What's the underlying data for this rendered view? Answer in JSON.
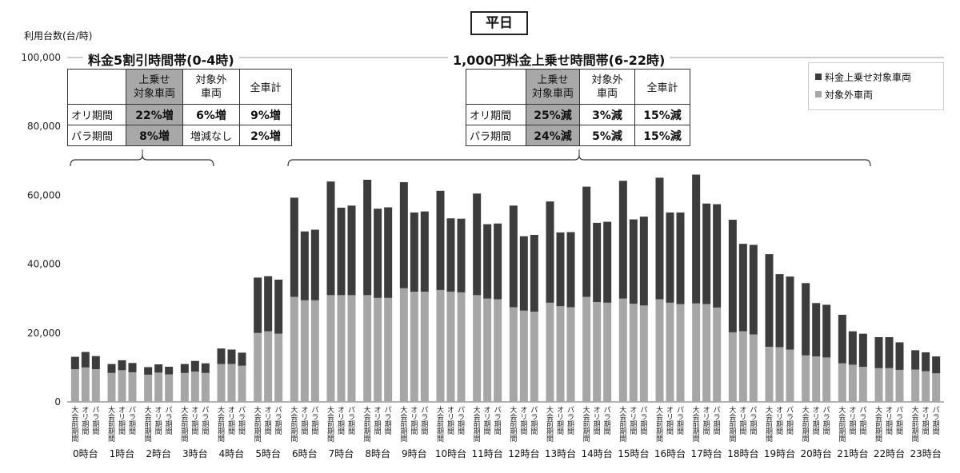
{
  "header": {
    "weekday": "平日"
  },
  "chart_data": {
    "type": "bar",
    "stacked": true,
    "ylabel": "利用台数(台/時)",
    "ylim": [
      0,
      100000
    ],
    "yticks": [
      0,
      20000,
      40000,
      60000,
      80000,
      100000
    ],
    "ytick_labels": [
      "0",
      "20,000",
      "40,000",
      "60,000",
      "80,000",
      "100,000"
    ],
    "grid": false,
    "legend_position": "top-right",
    "bar_labels": [
      "大会前期間",
      "オリ期間",
      "パラ期間"
    ],
    "categories": [
      "0時台",
      "1時台",
      "2時台",
      "3時台",
      "4時台",
      "5時台",
      "6時台",
      "7時台",
      "8時台",
      "9時台",
      "10時台",
      "11時台",
      "12時台",
      "13時台",
      "14時台",
      "15時台",
      "16時台",
      "17時台",
      "18時台",
      "19時台",
      "20時台",
      "21時台",
      "22時台",
      "23時台"
    ],
    "series": [
      {
        "name": "対象外車両",
        "color": "#a6a6a6",
        "values": [
          [
            9500,
            10000,
            9500
          ],
          [
            8400,
            9200,
            8600
          ],
          [
            7900,
            8500,
            8000
          ],
          [
            8400,
            8800,
            8400
          ],
          [
            11000,
            11000,
            10500
          ],
          [
            20000,
            20500,
            19800
          ],
          [
            30500,
            29500,
            29500
          ],
          [
            31000,
            31000,
            31000
          ],
          [
            31000,
            30200,
            30200
          ],
          [
            33000,
            32000,
            32000
          ],
          [
            32500,
            32000,
            31800
          ],
          [
            31000,
            30000,
            29800
          ],
          [
            27500,
            26500,
            26200
          ],
          [
            28800,
            27800,
            27500
          ],
          [
            30500,
            29000,
            28800
          ],
          [
            30000,
            28500,
            28000
          ],
          [
            29800,
            28800,
            28400
          ],
          [
            28600,
            28400,
            27400
          ],
          [
            20200,
            20500,
            19600
          ],
          [
            16000,
            15900,
            15200
          ],
          [
            13500,
            13200,
            12900
          ],
          [
            11200,
            10800,
            10200
          ],
          [
            9800,
            9800,
            9300
          ],
          [
            9400,
            8900,
            8300
          ]
        ]
      },
      {
        "name": "料金上乗せ対象車両",
        "color": "#3c3c3c",
        "values": [
          [
            3600,
            4500,
            3800
          ],
          [
            2600,
            2900,
            2700
          ],
          [
            2200,
            2400,
            2200
          ],
          [
            2600,
            3100,
            2800
          ],
          [
            4500,
            4200,
            3800
          ],
          [
            16100,
            16000,
            15700
          ],
          [
            28800,
            20000,
            20500
          ],
          [
            33000,
            25400,
            26000
          ],
          [
            33500,
            25900,
            26300
          ],
          [
            30800,
            23000,
            23300
          ],
          [
            28800,
            21300,
            21400
          ],
          [
            29500,
            21600,
            22000
          ],
          [
            29500,
            21600,
            22300
          ],
          [
            29400,
            21400,
            21800
          ],
          [
            32000,
            23000,
            23500
          ],
          [
            34200,
            24500,
            25800
          ],
          [
            35300,
            26200,
            26600
          ],
          [
            37400,
            29200,
            30000
          ],
          [
            32700,
            25400,
            26000
          ],
          [
            26900,
            21200,
            21200
          ],
          [
            21000,
            15500,
            15300
          ],
          [
            14100,
            9700,
            9600
          ],
          [
            9000,
            9000,
            8000
          ],
          [
            5600,
            5500,
            4900
          ]
        ]
      }
    ]
  },
  "bands": [
    {
      "title": "料金5割引時間帯(0-4時)",
      "table": {
        "header": [
          "",
          "上乗せ\n対象車両",
          "対象外\n車両",
          "全車計"
        ],
        "rows": [
          [
            "オリ期間",
            "22%増",
            "6%増",
            "9%増"
          ],
          [
            "パラ期間",
            "8%増",
            "増減なし",
            "2%増"
          ]
        ]
      }
    },
    {
      "title": "1,000円料金上乗せ時間帯(6-22時)",
      "table": {
        "header": [
          "",
          "上乗せ\n対象車両",
          "対象外\n車両",
          "全車計"
        ],
        "rows": [
          [
            "オリ期間",
            "25%減",
            "3%減",
            "15%減"
          ],
          [
            "パラ期間",
            "24%減",
            "5%減",
            "15%減"
          ]
        ]
      }
    }
  ]
}
